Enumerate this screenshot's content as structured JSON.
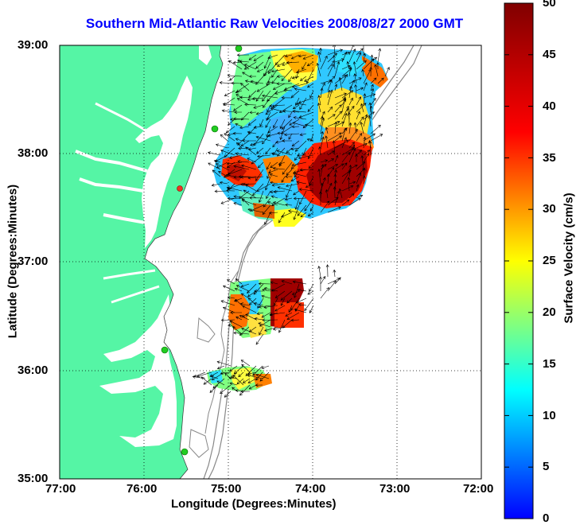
{
  "title": "Southern Mid-Atlantic Raw Velocities 2008/08/27 2000 GMT",
  "axes": {
    "xlabel": "Longitude (Degrees:Minutes)",
    "ylabel": "Latitude (Degrees:Minutes)",
    "x_ticks": [
      "77:00",
      "76:00",
      "75:00",
      "74:00",
      "73:00",
      "72:00"
    ],
    "y_ticks": [
      "39:00",
      "38:00",
      "37:00",
      "36:00",
      "35:00"
    ],
    "xlim": [
      -77,
      -72
    ],
    "ylim": [
      35,
      39
    ]
  },
  "colorbar": {
    "label": "Surface Velocity (cm/s)",
    "ticks": [
      "0",
      "5",
      "10",
      "15",
      "20",
      "25",
      "30",
      "35",
      "40",
      "45",
      "50"
    ],
    "range": [
      0,
      50
    ]
  },
  "colors": {
    "land": "#55f5a5",
    "title": "#0000ff",
    "contour": "#888888",
    "station": "#22cc22",
    "station_alt": "#ee3322"
  }
}
